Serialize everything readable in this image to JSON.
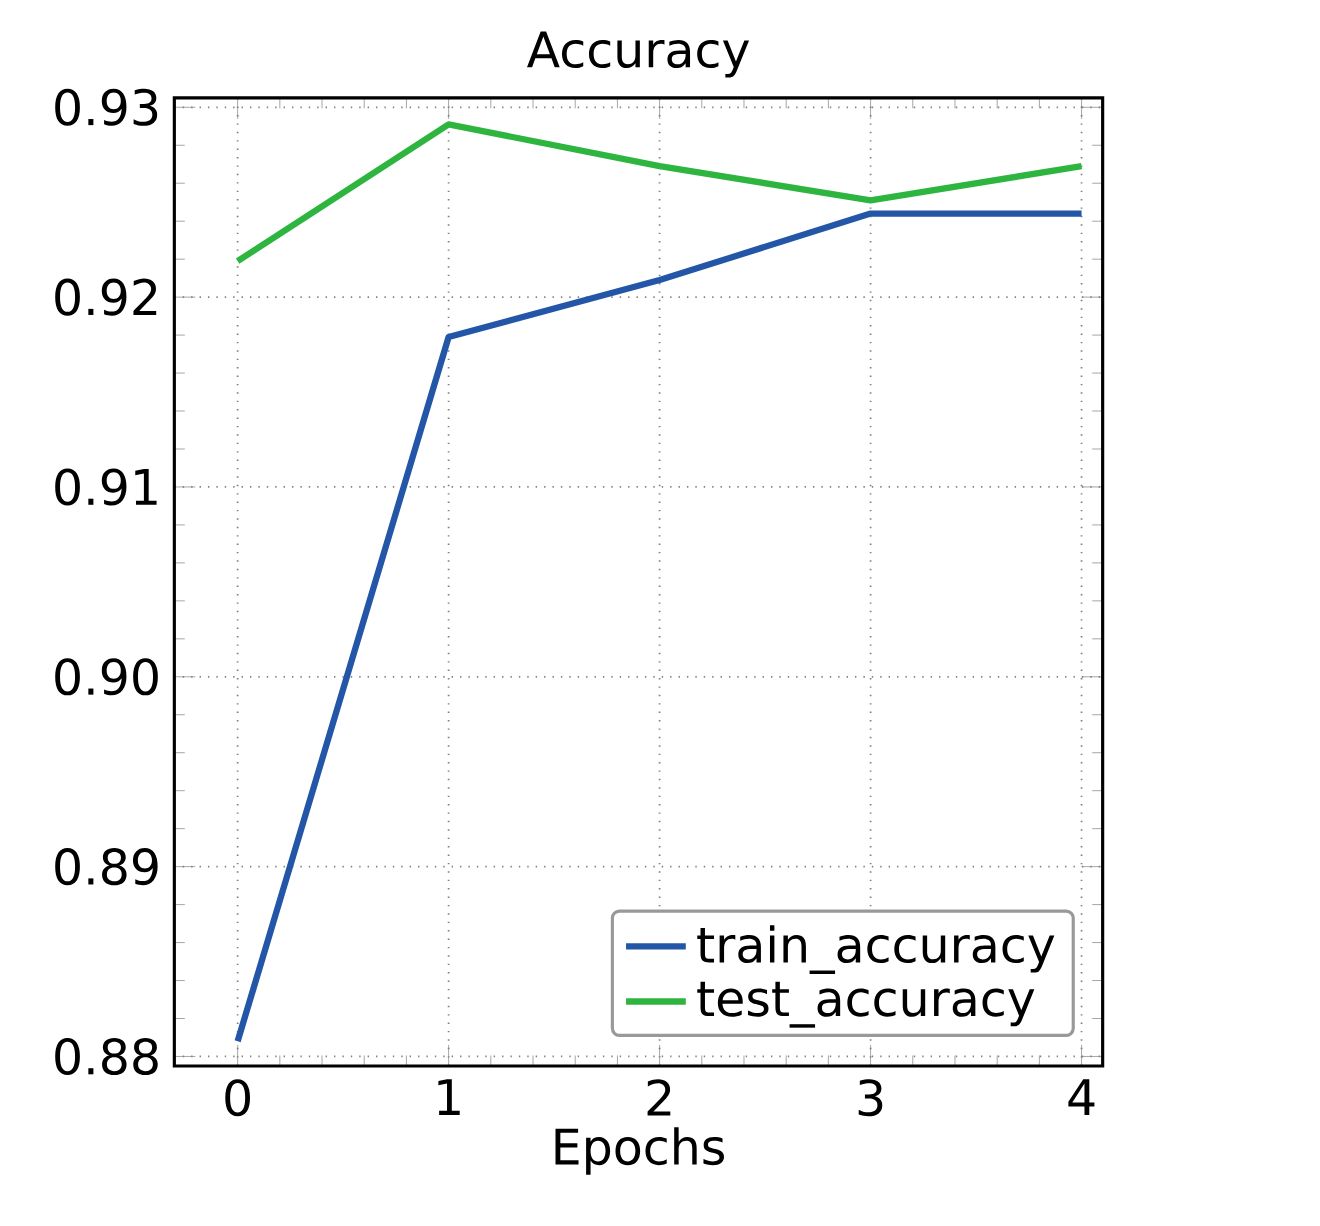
{
  "chart_data": {
    "type": "line",
    "title": "Accuracy",
    "xlabel": "Epochs",
    "x": [
      0,
      1,
      2,
      3,
      4
    ],
    "series": [
      {
        "name": "train_accuracy",
        "color": "#2456a8",
        "values": [
          0.8808,
          0.9179,
          0.9209,
          0.9244,
          0.9244
        ]
      },
      {
        "name": "test_accuracy",
        "color": "#2eb540",
        "values": [
          0.9219,
          0.9291,
          0.9269,
          0.9251,
          0.9269
        ]
      }
    ],
    "xlim": [
      -0.3,
      4.1
    ],
    "xticks": [
      0,
      1,
      2,
      3,
      4
    ],
    "ylim": [
      0.8795,
      0.9305
    ],
    "yticks": [
      {
        "value": 0.88,
        "label": "0.88"
      },
      {
        "value": 0.89,
        "label": "0.89"
      },
      {
        "value": 0.9,
        "label": "0.90"
      },
      {
        "value": 0.91,
        "label": "0.91"
      },
      {
        "value": 0.92,
        "label": "0.92"
      },
      {
        "value": 0.93,
        "label": "0.93"
      }
    ],
    "grid": true,
    "legend": "bottom right",
    "marker": "none",
    "line_style": "solid"
  }
}
